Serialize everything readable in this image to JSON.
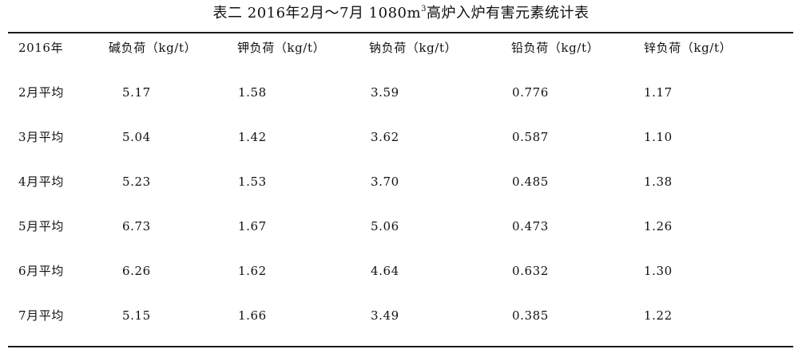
{
  "caption": {
    "before_sup": "表二 2016年2月～7月 1080m",
    "sup": "3",
    "after_sup": "高炉入炉有害元素统计表"
  },
  "table": {
    "columns": [
      "2016年",
      "碱负荷（kg/t）",
      "钾负荷（kg/t）",
      "钠负荷（kg/t）",
      "铅负荷（kg/t）",
      "锌负荷（kg/t）"
    ],
    "rows": [
      [
        "2月平均",
        "5.17",
        "1.58",
        "3.59",
        "0.776",
        "1.17"
      ],
      [
        "3月平均",
        "5.04",
        "1.42",
        "3.62",
        "0.587",
        "1.10"
      ],
      [
        "4月平均",
        "5.23",
        "1.53",
        "3.70",
        "0.485",
        "1.38"
      ],
      [
        "5月平均",
        "6.73",
        "1.67",
        "5.06",
        "0.473",
        "1.26"
      ],
      [
        "6月平均",
        "6.26",
        "1.62",
        "4.64",
        "0.632",
        "1.30"
      ],
      [
        "7月平均",
        "5.15",
        "1.66",
        "3.49",
        "0.385",
        "1.22"
      ]
    ]
  }
}
